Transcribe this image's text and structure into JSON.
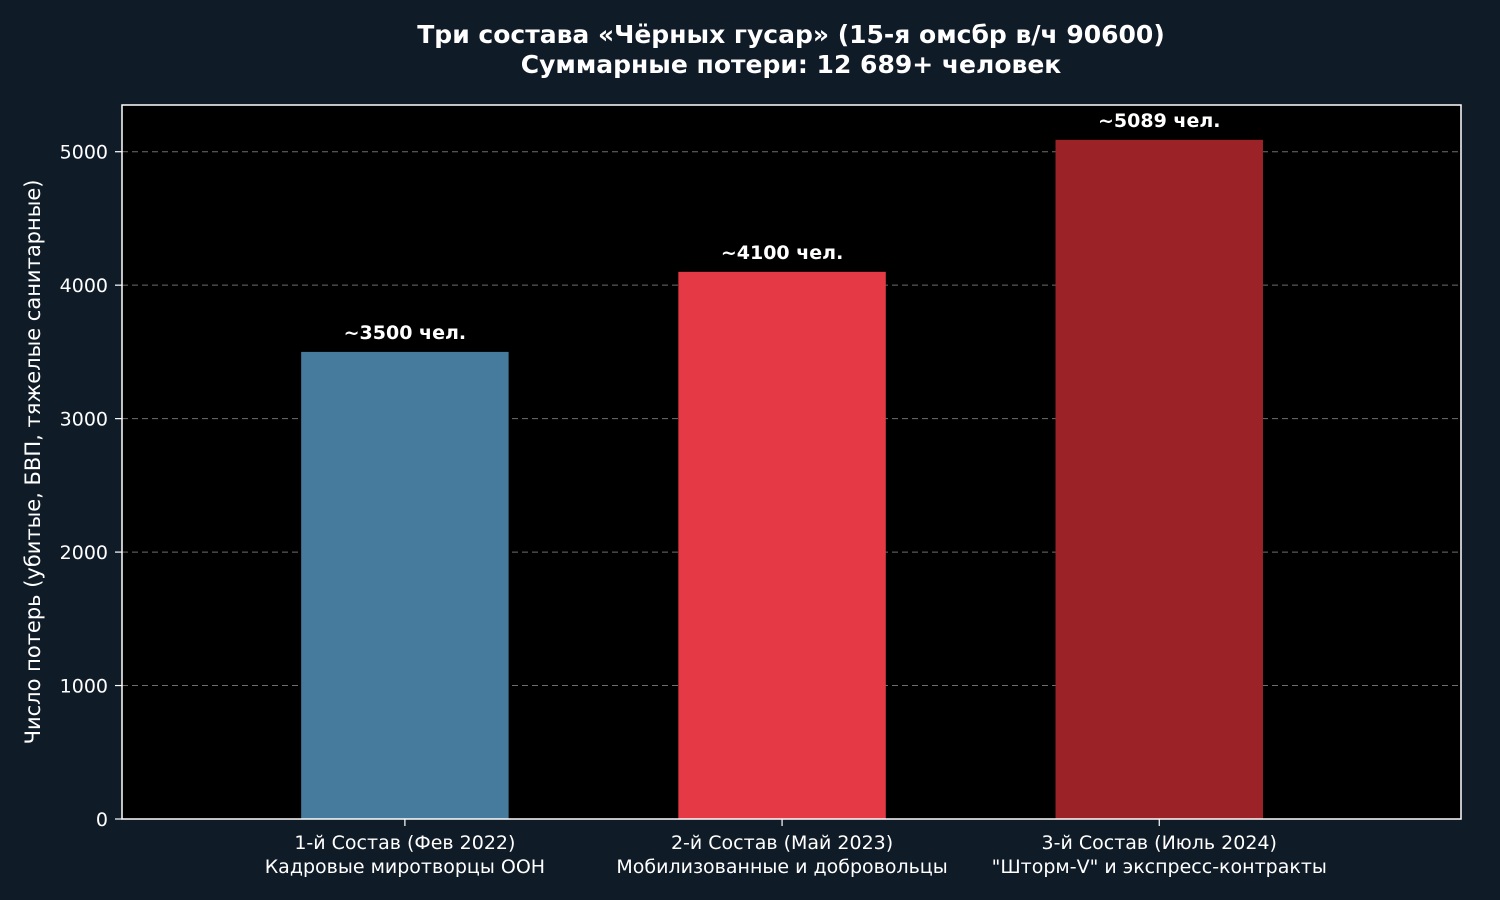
{
  "chart_data": {
    "type": "bar",
    "title": "Три состава «Чёрных гусар» (15-я омсбр в/ч 90600)",
    "subtitle": "Суммарные потери: 12 689+ человек",
    "xlabel": "",
    "ylabel": "Число потерь (убитые, БВП, тяжелые санитарные)",
    "ylim": [
      0,
      5350
    ],
    "yticks": [
      0,
      1000,
      2000,
      3000,
      4000,
      5000
    ],
    "grid": "y-dashed",
    "categories": [
      [
        "1-й Состав (Фев 2022)",
        "Кадровые миротворцы ООН"
      ],
      [
        "2-й Состав (Май 2023)",
        "Мобилизованные и добровольцы"
      ],
      [
        "3-й Состав (Июль 2024)",
        "\"Шторм-V\" и экспресс-контракты"
      ]
    ],
    "values": [
      3500,
      4100,
      5089
    ],
    "value_labels": [
      "~3500 чел.",
      "~4100 чел.",
      "~5089 чел."
    ],
    "colors": [
      "#467b9d",
      "#e63946",
      "#9b2226"
    ],
    "background": "#101b28",
    "plot_background": "#000000"
  }
}
